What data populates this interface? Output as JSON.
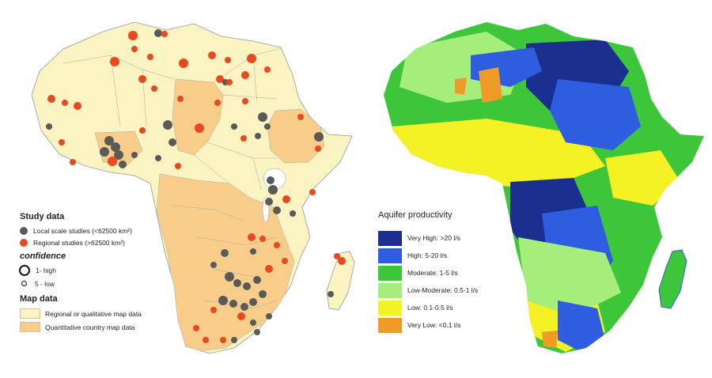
{
  "left_legend": {
    "study_title": "Study data",
    "local_label": "Local scale studies (<62500 km²)",
    "regional_label": "Regional studies (>62500 km²)",
    "confidence_title": "confidence",
    "high_label": "1- high",
    "low_label": "5 - low",
    "map_data_title": "Map data",
    "regional_map_label": "Regional or qualitative map data",
    "quant_map_label": "Quantitative country map data"
  },
  "right_legend": {
    "title": "Aquifer productivity",
    "classes": [
      {
        "label": "Very High: >20 l/s",
        "color": "#1b2f8f"
      },
      {
        "label": "High: 5-20 l/s",
        "color": "#2f5de0"
      },
      {
        "label": "Moderate: 1-5 l/s",
        "color": "#3ec63a"
      },
      {
        "label": "Low-Moderate: 0.5-1 l/s",
        "color": "#a6ee7c"
      },
      {
        "label": "Low: 0.1-0.5 l/s",
        "color": "#f4f224"
      },
      {
        "label": "Very Low: <0.1 l/s",
        "color": "#f09a28"
      }
    ]
  },
  "colors": {
    "local_dot": "#5a5a5a",
    "regional_dot": "#e8491e",
    "regional_map": "#fbf3c2",
    "quant_map": "#f8cd8a"
  }
}
